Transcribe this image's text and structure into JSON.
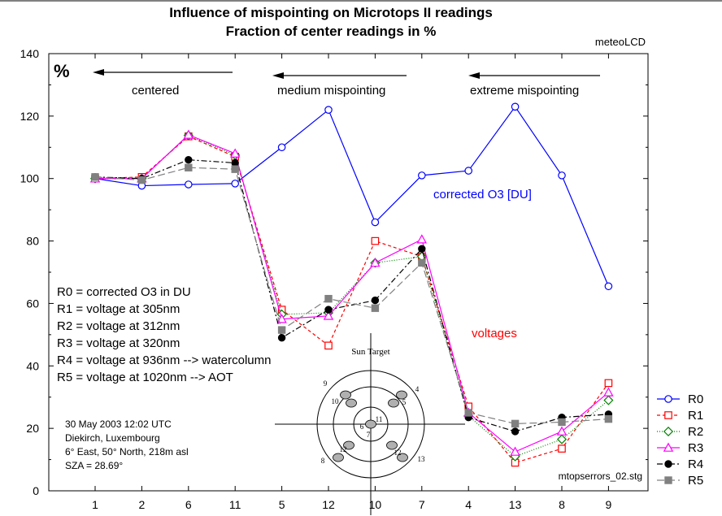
{
  "chart_data": {
    "type": "line",
    "title": "Influence of mispointing on Microtops II readings",
    "subtitle": "Fraction of center readings in %",
    "watermark": "meteoLCD",
    "ylabel": "%",
    "xlabel": "",
    "ylim": [
      0,
      140
    ],
    "yticks": [
      "0",
      "20",
      "40",
      "60",
      "80",
      "100",
      "120",
      "140"
    ],
    "categories": [
      "1",
      "2",
      "6",
      "11",
      "5",
      "12",
      "10",
      "7",
      "4",
      "13",
      "8",
      "9"
    ],
    "grid": false,
    "legend_position": "right",
    "series": [
      {
        "name": "R0",
        "color": "#0000ff",
        "dash": "",
        "marker": "circle",
        "values": [
          100,
          97.7,
          98.1,
          98.4,
          110,
          122,
          86,
          101,
          102.5,
          123,
          101,
          65.5
        ]
      },
      {
        "name": "R1",
        "color": "#ff0000",
        "dash": "4,3",
        "marker": "square",
        "values": [
          100,
          100.5,
          113.5,
          107,
          58,
          46.5,
          80,
          75,
          27,
          9,
          13.5,
          34.5
        ]
      },
      {
        "name": "R2",
        "color": "#008000",
        "dash": "1,2",
        "marker": "diamond",
        "values": [
          100,
          100,
          113.8,
          107.5,
          56.5,
          57,
          73,
          75,
          24,
          11,
          16.5,
          29
        ]
      },
      {
        "name": "R3",
        "color": "#ff00ff",
        "dash": "",
        "marker": "triangle",
        "values": [
          100,
          100,
          114,
          108,
          55,
          56,
          73,
          80.5,
          25,
          12.5,
          19,
          31.5
        ]
      },
      {
        "name": "R4",
        "color": "#000000",
        "dash": "7,3,2,3",
        "marker": "dot",
        "values": [
          100.5,
          100,
          106,
          105,
          49,
          58,
          61,
          77.5,
          23.5,
          19,
          23.5,
          24.5
        ]
      },
      {
        "name": "R5",
        "color": "#808080",
        "dash": "9,4",
        "marker": "filledsquare",
        "values": [
          100.5,
          99.5,
          103.5,
          103,
          51.5,
          61.5,
          58.5,
          73,
          25,
          21.5,
          22,
          23
        ]
      }
    ],
    "annotations": {
      "sections": [
        "centered",
        "medium mispointing",
        "extreme mispointing"
      ],
      "o3_label": "corrected O3 [DU]",
      "voltage_label": "voltages",
      "definitions": [
        "R0 = corrected O3 in DU",
        "R1 = voltage at 305nm",
        "R2 = voltage at 312nm",
        "R3 = voltage at 320nm",
        "R4 = voltage at 936nm   --> watercolumn",
        "R5 = voltage at 1020nm --> AOT"
      ],
      "info": [
        "30 May 2003 12:02 UTC",
        "Diekirch, Luxembourg",
        "6° East, 50° North, 218m asl",
        "SZA = 28.69°"
      ],
      "filename": "mtopserrors_02.stg",
      "sun_target": {
        "title": "Sun Target",
        "labels": [
          "9",
          "4",
          "10",
          "5",
          "11",
          "6",
          "12",
          "7",
          "12",
          "8",
          "13"
        ]
      }
    }
  }
}
